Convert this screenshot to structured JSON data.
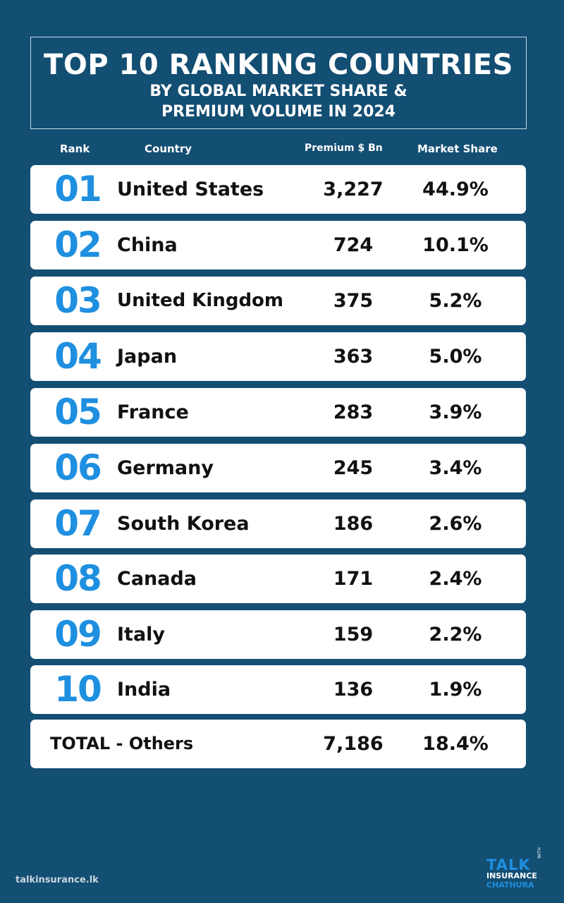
{
  "title": {
    "line1": "TOP 10 RANKING COUNTRIES",
    "line2": "BY GLOBAL MARKET SHARE &",
    "line3": "PREMIUM VOLUME IN 2024"
  },
  "headers": {
    "rank": "Rank",
    "country": "Country",
    "premium": "Premium $ Bn",
    "share": "Market Share"
  },
  "rows": [
    {
      "rank": "01",
      "country": "United States",
      "premium": "3,227",
      "share": "44.9%"
    },
    {
      "rank": "02",
      "country": "China",
      "premium": "724",
      "share": "10.1%"
    },
    {
      "rank": "03",
      "country": "United Kingdom",
      "premium": "375",
      "share": "5.2%"
    },
    {
      "rank": "04",
      "country": "Japan",
      "premium": "363",
      "share": "5.0%"
    },
    {
      "rank": "05",
      "country": "France",
      "premium": "283",
      "share": "3.9%"
    },
    {
      "rank": "06",
      "country": "Germany",
      "premium": "245",
      "share": "3.4%"
    },
    {
      "rank": "07",
      "country": "South Korea",
      "premium": "186",
      "share": "2.6%"
    },
    {
      "rank": "08",
      "country": "Canada",
      "premium": "171",
      "share": "2.4%"
    },
    {
      "rank": "09",
      "country": "Italy",
      "premium": "159",
      "share": "2.2%"
    },
    {
      "rank": "10",
      "country": "India",
      "premium": "136",
      "share": "1.9%"
    }
  ],
  "total": {
    "label": "TOTAL - Others",
    "premium": "7,186",
    "share": "18.4%"
  },
  "footer": {
    "url": "talkinsurance.lk",
    "logo_talk": "TALK",
    "logo_with": "WITH",
    "logo_insurance": "INSURANCE",
    "logo_chathura": "CHATHURA"
  },
  "colors": {
    "background": "#134e73",
    "accent": "#1f8fe0",
    "row_background": "#ffffff"
  }
}
